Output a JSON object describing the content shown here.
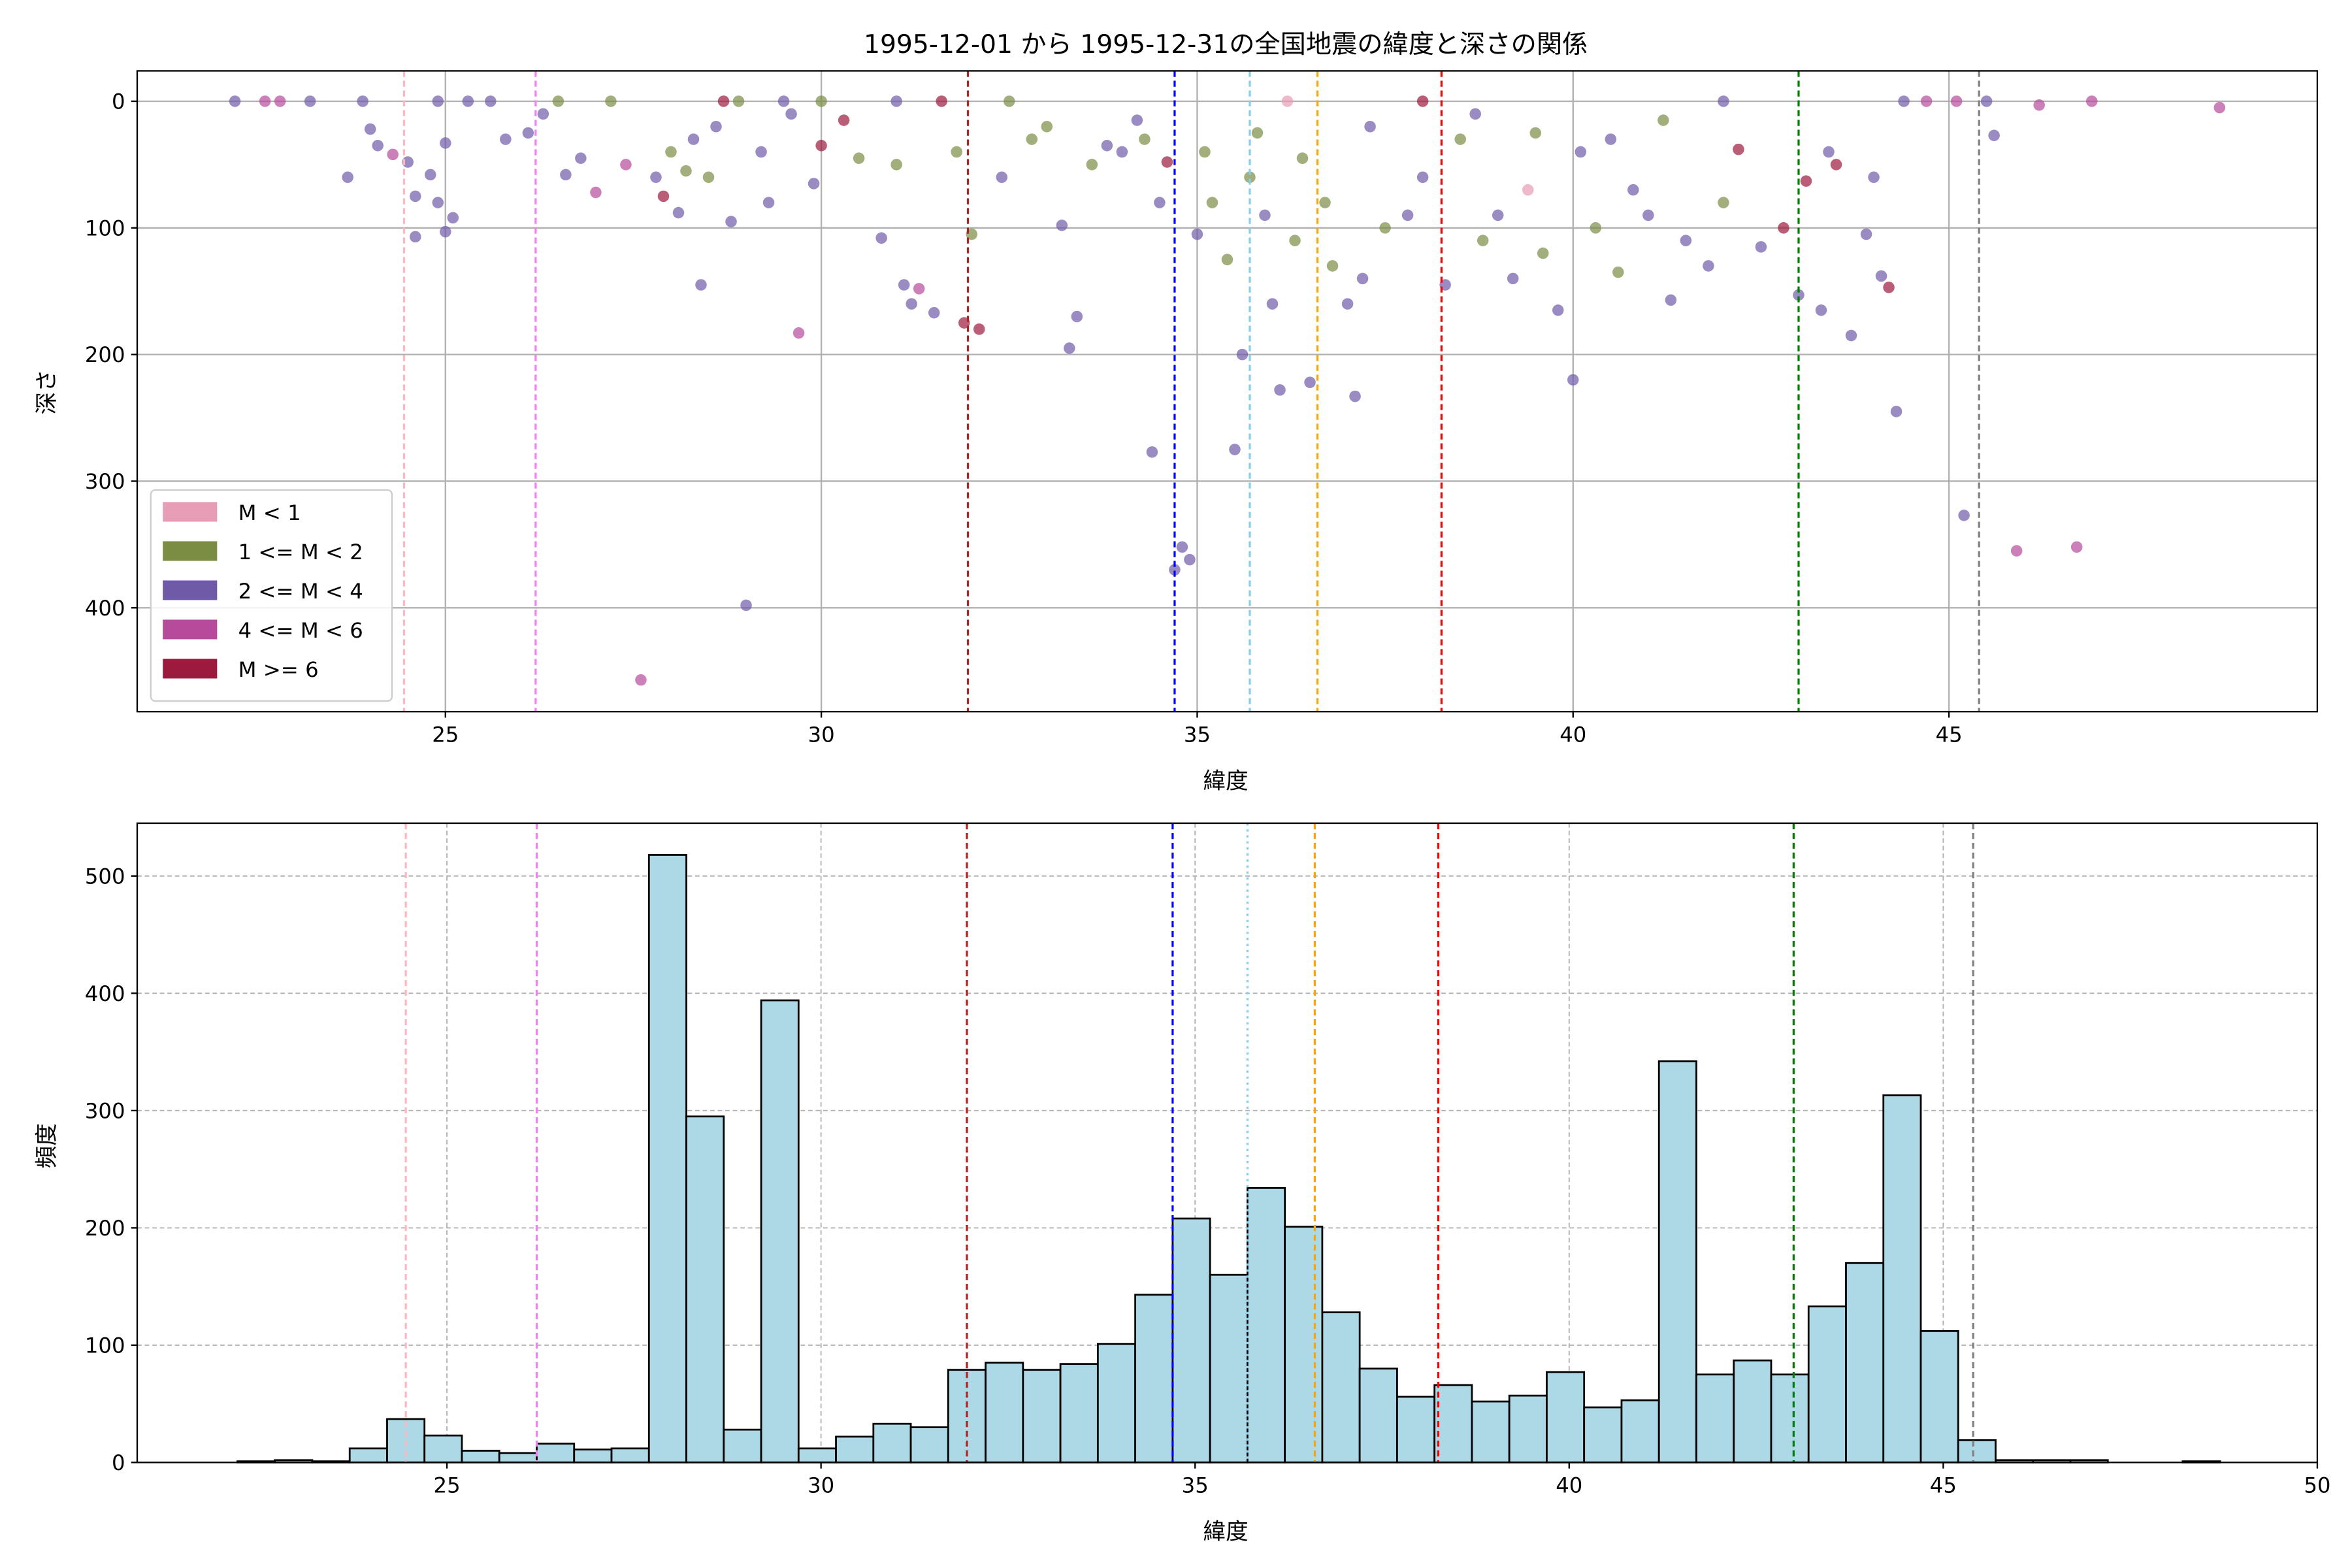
{
  "chart_data": [
    {
      "type": "scatter",
      "title": "1995-12-01 から 1995-12-31の全国地震の緯度と深さの関係",
      "xlabel": "緯度",
      "ylabel": "深さ",
      "xlim": [
        20.9,
        49.9
      ],
      "ylim": [
        482,
        -24
      ],
      "y_inverted": true,
      "xticks": [
        25,
        30,
        35,
        40,
        45
      ],
      "yticks": [
        0,
        100,
        200,
        300,
        400
      ],
      "grid": true,
      "legend_position": "lower-left",
      "legend": [
        {
          "label": "M < 1",
          "color": "#e79db5"
        },
        {
          "label": "1 <= M < 2",
          "color": "#7b8c43"
        },
        {
          "label": "2 <= M < 4",
          "color": "#6f5aa8"
        },
        {
          "label": "4 <= M < 6",
          "color": "#b74a9b"
        },
        {
          "label": "M >= 6",
          "color": "#9c1a3e"
        }
      ],
      "points_note": "[latitude, depth_km, magnitude_class_index]",
      "points": [
        [
          22.2,
          0,
          2
        ],
        [
          22.6,
          0,
          3
        ],
        [
          22.8,
          0,
          3
        ],
        [
          23.2,
          0,
          2
        ],
        [
          23.7,
          60,
          2
        ],
        [
          23.9,
          0,
          2
        ],
        [
          24.0,
          22,
          2
        ],
        [
          24.1,
          35,
          2
        ],
        [
          24.3,
          42,
          3
        ],
        [
          24.5,
          48,
          2
        ],
        [
          24.6,
          75,
          2
        ],
        [
          24.6,
          107,
          2
        ],
        [
          24.8,
          58,
          2
        ],
        [
          24.9,
          80,
          2
        ],
        [
          25.0,
          103,
          2
        ],
        [
          25.1,
          92,
          2
        ],
        [
          25.0,
          33,
          2
        ],
        [
          25.3,
          0,
          2
        ],
        [
          25.6,
          0,
          2
        ],
        [
          25.8,
          30,
          2
        ],
        [
          26.1,
          25,
          2
        ],
        [
          26.3,
          10,
          2
        ],
        [
          26.6,
          58,
          2
        ],
        [
          26.8,
          45,
          2
        ],
        [
          27.0,
          72,
          3
        ],
        [
          27.4,
          50,
          3
        ],
        [
          27.6,
          457,
          3
        ],
        [
          27.8,
          60,
          2
        ],
        [
          27.9,
          75,
          4
        ],
        [
          28.0,
          40,
          1
        ],
        [
          28.1,
          88,
          2
        ],
        [
          28.2,
          55,
          1
        ],
        [
          28.3,
          30,
          2
        ],
        [
          28.4,
          145,
          2
        ],
        [
          28.5,
          60,
          1
        ],
        [
          28.6,
          20,
          2
        ],
        [
          28.8,
          95,
          2
        ],
        [
          28.9,
          0,
          1
        ],
        [
          29.0,
          398,
          2
        ],
        [
          29.2,
          40,
          2
        ],
        [
          29.3,
          80,
          2
        ],
        [
          29.6,
          10,
          2
        ],
        [
          29.7,
          183,
          3
        ],
        [
          29.9,
          65,
          2
        ],
        [
          30.0,
          35,
          4
        ],
        [
          30.0,
          0,
          1
        ],
        [
          30.3,
          15,
          4
        ],
        [
          30.5,
          45,
          1
        ],
        [
          30.8,
          108,
          2
        ],
        [
          31.0,
          50,
          1
        ],
        [
          31.1,
          145,
          2
        ],
        [
          31.2,
          160,
          2
        ],
        [
          31.3,
          148,
          3
        ],
        [
          31.5,
          167,
          2
        ],
        [
          31.8,
          40,
          1
        ],
        [
          31.9,
          175,
          4
        ],
        [
          32.0,
          105,
          1
        ],
        [
          32.1,
          180,
          4
        ],
        [
          32.4,
          60,
          2
        ],
        [
          32.8,
          30,
          1
        ],
        [
          33.2,
          98,
          2
        ],
        [
          33.3,
          195,
          2
        ],
        [
          33.4,
          170,
          2
        ],
        [
          33.6,
          50,
          1
        ],
        [
          34.0,
          40,
          2
        ],
        [
          34.3,
          30,
          1
        ],
        [
          34.4,
          277,
          2
        ],
        [
          34.5,
          80,
          2
        ],
        [
          34.6,
          48,
          4
        ],
        [
          34.7,
          370,
          2
        ],
        [
          34.8,
          352,
          2
        ],
        [
          34.9,
          362,
          2
        ],
        [
          35.0,
          105,
          2
        ],
        [
          35.2,
          80,
          1
        ],
        [
          35.4,
          125,
          1
        ],
        [
          35.5,
          275,
          2
        ],
        [
          35.6,
          200,
          2
        ],
        [
          35.7,
          60,
          1
        ],
        [
          35.9,
          90,
          2
        ],
        [
          36.0,
          160,
          2
        ],
        [
          36.1,
          228,
          2
        ],
        [
          36.3,
          110,
          1
        ],
        [
          36.5,
          222,
          2
        ],
        [
          36.7,
          80,
          1
        ],
        [
          36.8,
          130,
          1
        ],
        [
          37.0,
          160,
          2
        ],
        [
          37.1,
          233,
          2
        ],
        [
          37.2,
          140,
          2
        ],
        [
          37.5,
          100,
          1
        ],
        [
          37.8,
          90,
          2
        ],
        [
          38.0,
          60,
          2
        ],
        [
          38.3,
          145,
          2
        ],
        [
          38.5,
          30,
          1
        ],
        [
          38.8,
          110,
          1
        ],
        [
          39.0,
          90,
          2
        ],
        [
          39.2,
          140,
          2
        ],
        [
          39.4,
          70,
          0
        ],
        [
          39.6,
          120,
          1
        ],
        [
          39.8,
          165,
          2
        ],
        [
          40.0,
          220,
          2
        ],
        [
          40.1,
          40,
          2
        ],
        [
          40.3,
          100,
          1
        ],
        [
          40.6,
          135,
          1
        ],
        [
          40.8,
          70,
          2
        ],
        [
          41.0,
          90,
          2
        ],
        [
          41.3,
          157,
          2
        ],
        [
          41.5,
          110,
          2
        ],
        [
          41.8,
          130,
          2
        ],
        [
          42.0,
          80,
          1
        ],
        [
          42.2,
          38,
          4
        ],
        [
          42.5,
          115,
          2
        ],
        [
          42.8,
          100,
          4
        ],
        [
          43.0,
          153,
          2
        ],
        [
          43.1,
          63,
          4
        ],
        [
          43.3,
          165,
          2
        ],
        [
          43.5,
          50,
          4
        ],
        [
          43.7,
          185,
          2
        ],
        [
          43.9,
          105,
          2
        ],
        [
          44.1,
          138,
          2
        ],
        [
          44.2,
          147,
          4
        ],
        [
          44.3,
          245,
          2
        ],
        [
          44.7,
          0,
          3
        ],
        [
          45.2,
          327,
          2
        ],
        [
          45.5,
          0,
          2
        ],
        [
          45.6,
          27,
          2
        ],
        [
          45.9,
          355,
          3
        ],
        [
          46.2,
          3,
          3
        ],
        [
          46.7,
          352,
          3
        ],
        [
          46.9,
          0,
          3
        ],
        [
          48.6,
          5,
          3
        ],
        [
          24.9,
          0,
          2
        ],
        [
          26.5,
          0,
          1
        ],
        [
          27.2,
          0,
          1
        ],
        [
          29.5,
          0,
          2
        ],
        [
          31.0,
          0,
          2
        ],
        [
          32.5,
          0,
          1
        ],
        [
          33.0,
          20,
          1
        ],
        [
          33.8,
          35,
          2
        ],
        [
          34.2,
          15,
          2
        ],
        [
          35.1,
          40,
          1
        ],
        [
          35.8,
          25,
          1
        ],
        [
          36.4,
          45,
          1
        ],
        [
          37.3,
          20,
          2
        ],
        [
          38.7,
          10,
          2
        ],
        [
          39.5,
          25,
          1
        ],
        [
          40.5,
          30,
          2
        ],
        [
          41.2,
          15,
          1
        ],
        [
          42.0,
          0,
          2
        ],
        [
          43.4,
          40,
          2
        ],
        [
          44.0,
          60,
          2
        ],
        [
          44.4,
          0,
          2
        ],
        [
          45.1,
          0,
          3
        ],
        [
          36.2,
          0,
          0
        ],
        [
          38.0,
          0,
          4
        ],
        [
          31.6,
          0,
          4
        ],
        [
          28.7,
          0,
          4
        ]
      ],
      "reference_lines": [
        {
          "x": 24.45,
          "color": "#ffb6c1",
          "style": "dashed"
        },
        {
          "x": 26.2,
          "color": "#ee82ee",
          "style": "dashed"
        },
        {
          "x": 31.95,
          "color": "#b22222",
          "style": "dashed"
        },
        {
          "x": 34.7,
          "color": "#0000ff",
          "style": "dashed"
        },
        {
          "x": 35.7,
          "color": "#87ceeb",
          "style": "dashed"
        },
        {
          "x": 36.6,
          "color": "#ffa500",
          "style": "dashed"
        },
        {
          "x": 38.25,
          "color": "#ff0000",
          "style": "dashed"
        },
        {
          "x": 43.0,
          "color": "#008000",
          "style": "dashed"
        },
        {
          "x": 45.4,
          "color": "#808080",
          "style": "dashed"
        }
      ]
    },
    {
      "type": "bar",
      "title": "",
      "xlabel": "緯度",
      "ylabel": "頻度",
      "xlim": [
        20.86,
        50
      ],
      "ylim": [
        0,
        545
      ],
      "xticks": [
        25,
        30,
        35,
        40,
        45,
        50
      ],
      "yticks": [
        0,
        100,
        200,
        300,
        400,
        500
      ],
      "grid": true,
      "bin_start": 22.2,
      "bin_width": 0.5,
      "values": [
        1,
        2,
        1,
        12,
        37,
        23,
        10,
        8,
        16,
        11,
        12,
        518,
        295,
        28,
        394,
        12,
        22,
        33,
        30,
        79,
        85,
        79,
        84,
        101,
        143,
        208,
        160,
        234,
        201,
        128,
        80,
        56,
        66,
        52,
        57,
        77,
        47,
        53,
        342,
        75,
        87,
        75,
        133,
        170,
        313,
        112,
        19,
        2,
        2,
        2,
        0,
        0,
        1
      ],
      "fill_color": "#add8e6",
      "reference_lines": [
        {
          "x": 24.45,
          "color": "#ffb6c1",
          "style": "dashed"
        },
        {
          "x": 26.2,
          "color": "#ee82ee",
          "style": "dashed"
        },
        {
          "x": 31.95,
          "color": "#b22222",
          "style": "dashed"
        },
        {
          "x": 34.7,
          "color": "#0000ff",
          "style": "dashed"
        },
        {
          "x": 35.7,
          "color": "#87ceeb",
          "style": "dotted"
        },
        {
          "x": 36.6,
          "color": "#ffa500",
          "style": "dashed"
        },
        {
          "x": 38.25,
          "color": "#ff0000",
          "style": "dashed"
        },
        {
          "x": 43.0,
          "color": "#008000",
          "style": "dashed"
        },
        {
          "x": 45.4,
          "color": "#808080",
          "style": "dashed"
        }
      ]
    }
  ]
}
